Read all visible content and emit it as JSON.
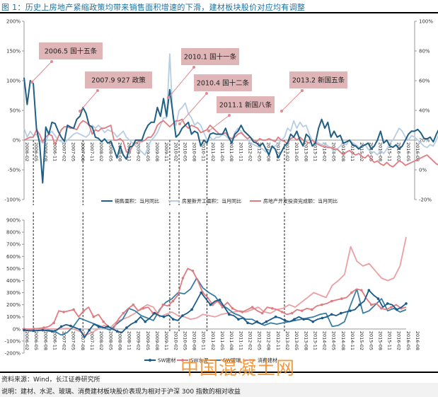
{
  "title": "图 1：历史上房地产紧缩政策均带来销售面积增速的下滑，建材板块股价对应均有调整",
  "source": "资料来源：Wind，长江证券研究所",
  "note": "说明：建材、水泥、玻璃、消费建材板块股价表现为相对于沪深 300 指数的相对收益",
  "watermark": "中国混凝土网",
  "colors": {
    "sales": "#1f5f86",
    "newstart": "#b7cde3",
    "invest": "#e07b80",
    "sw_building": "#1a5a8a",
    "sw_cement": "#e07b80",
    "sw_glass": "#3b7ea5",
    "consumer_building": "#eaa0a2",
    "annotation_bg": "#dfb5b7",
    "annotation_line": "#e08a90"
  },
  "chart_data": [
    {
      "type": "line",
      "title": "",
      "xlabel": "",
      "ylabel": "",
      "ylim": [
        -100,
        200
      ],
      "y2lim": [
        -20,
        100
      ],
      "yticks": [
        "200%",
        "150%",
        "100%",
        "50%",
        "0%",
        "-50%",
        "-100%"
      ],
      "y2ticks": [
        "100%",
        "80%",
        "60%",
        "40%",
        "20%",
        "0%",
        "-20%"
      ],
      "x_ticks": [
        "2006-02",
        "2006-05",
        "2006-08",
        "2006-11",
        "2007-02",
        "2007-05",
        "2007-08",
        "2007-11",
        "2008-02",
        "2008-05",
        "2008-08",
        "2008-11",
        "2009-02",
        "2009-05",
        "2009-08",
        "2009-11",
        "2010-02",
        "2010-05",
        "2010-08",
        "2010-11",
        "2011-02",
        "2011-05",
        "2011-08",
        "2011-11",
        "2012-02",
        "2012-05",
        "2012-08",
        "2012-11",
        "2013-02",
        "2013-05",
        "2013-08",
        "2013-11",
        "2014-02",
        "2014-05",
        "2014-08",
        "2014-11",
        "2015-02",
        "2015-05",
        "2015-08",
        "2015-11",
        "2016-02",
        "2016-05",
        "2016-08"
      ],
      "legend_position": "bottom",
      "series": [
        {
          "name": "销售面积：当月同比",
          "axis": "left",
          "color_key": "sales",
          "values": [
            105,
            60,
            100,
            95,
            20,
            -5,
            -72,
            22,
            10,
            30,
            28,
            15,
            5,
            -2,
            25,
            22,
            20,
            35,
            40,
            55,
            45,
            25,
            22,
            5,
            3,
            -3,
            2,
            -5,
            -2,
            -15,
            -30,
            -10,
            -25,
            -32,
            -12,
            -10,
            0,
            0,
            0,
            15,
            25,
            30,
            30,
            55,
            40,
            70,
            40,
            85,
            45,
            5,
            10,
            20,
            25,
            30,
            10,
            15,
            12,
            -10,
            0,
            -5,
            10,
            12,
            10,
            10,
            10,
            20,
            5,
            -5,
            10,
            15,
            25,
            15,
            10,
            5,
            -3,
            -5,
            -10,
            -5,
            -15,
            -25,
            -10,
            -15,
            -30,
            -20,
            -10,
            -5,
            10,
            5,
            15,
            0,
            -10,
            10,
            5,
            -10,
            -5,
            20,
            35,
            20,
            30,
            5,
            15,
            5,
            8,
            -5,
            -3,
            0,
            -8,
            -10,
            -15,
            -10,
            -8,
            -5,
            -15,
            -10,
            0,
            15,
            -5,
            0,
            -10,
            -12,
            -8,
            -15,
            -10,
            0,
            10,
            15,
            15,
            18,
            12,
            3,
            2,
            5,
            -3,
            10,
            20,
            30,
            10,
            15,
            15,
            20
          ]
        },
        {
          "name": "房屋新开工面积：当月同比",
          "axis": "right",
          "color_key": "newstart",
          "values": [
            28,
            22,
            26,
            23,
            24,
            20,
            18,
            19,
            24,
            26,
            23,
            20,
            19,
            18,
            20,
            22,
            24,
            25,
            24,
            23,
            22,
            24,
            30,
            28,
            30,
            28,
            25,
            27,
            26,
            25,
            22,
            24,
            26,
            22,
            20,
            18,
            16,
            14,
            12,
            10,
            15,
            20,
            22,
            25,
            30,
            35,
            35,
            78,
            35,
            30,
            40,
            42,
            45,
            38,
            35,
            30,
            32,
            30,
            25,
            20,
            22,
            20,
            22,
            22,
            24,
            23,
            21,
            20,
            25,
            28,
            26,
            23,
            21,
            18,
            17,
            16,
            15,
            14,
            12,
            13,
            15,
            16,
            18,
            20,
            22,
            28,
            26,
            33,
            28,
            32,
            29,
            30,
            24,
            20,
            20,
            18,
            17,
            18,
            16,
            15,
            12,
            14,
            16,
            18,
            17,
            20,
            18,
            17,
            15,
            16,
            17,
            14,
            12,
            12,
            10,
            13,
            11,
            14,
            18,
            20,
            24,
            28,
            26,
            22,
            20,
            23,
            22,
            20,
            18,
            16,
            15,
            17,
            16,
            20,
            25,
            28,
            26,
            24,
            23,
            22
          ]
        },
        {
          "name": "房地产开发投资完成额：当月同比",
          "axis": "right",
          "color_key": "invest",
          "values": [
            20,
            21,
            22,
            22,
            27,
            24,
            19,
            22,
            24,
            23,
            17,
            22,
            27,
            29,
            29,
            28,
            28,
            27,
            31,
            33,
            32,
            30,
            24,
            27,
            26,
            28,
            28,
            29,
            30,
            20,
            20,
            21,
            19,
            12,
            12,
            16,
            18,
            19,
            19,
            20,
            22,
            22,
            25,
            30,
            32,
            33,
            31,
            29,
            31,
            33,
            33,
            34,
            30,
            28,
            30,
            29,
            28,
            25,
            26,
            27,
            30,
            28,
            26,
            24,
            24,
            25,
            22,
            21,
            22,
            24,
            25,
            23,
            21,
            22,
            20,
            19,
            21,
            20,
            20,
            21,
            20,
            19,
            22,
            20,
            19,
            18,
            21,
            22,
            20,
            22,
            20,
            19,
            18,
            20,
            18,
            17,
            16,
            16,
            15,
            15,
            14,
            14,
            12,
            10,
            12,
            13,
            11,
            10,
            11,
            9,
            8,
            10,
            7,
            5,
            6,
            4,
            3,
            5,
            3,
            2,
            4,
            6,
            5,
            3,
            4,
            5,
            6,
            7,
            8,
            9,
            10,
            8,
            6,
            4,
            3,
            2,
            3,
            4,
            5,
            6
          ]
        }
      ],
      "annotations": [
        {
          "label": "2006.5 国十五条",
          "x": "2006-05"
        },
        {
          "label": "2007.9 927 政策",
          "x": "2007-09"
        },
        {
          "label": "2010.1 国十一条",
          "x": "2010-01"
        },
        {
          "label": "2010.4 国十二条",
          "x": "2010-04"
        },
        {
          "label": "2011.1 新国八条",
          "x": "2011-01"
        },
        {
          "label": "2013.2 新国五条",
          "x": "2013-02"
        }
      ]
    },
    {
      "type": "line",
      "title": "",
      "ylim": [
        -200,
        900
      ],
      "yticks": [
        "900%",
        "800%",
        "700%",
        "600%",
        "500%",
        "400%",
        "300%",
        "200%",
        "100%",
        "0%",
        "-100%",
        "-200%"
      ],
      "x_ticks": [
        "2006-02",
        "2006-05",
        "2006-08",
        "2006-11",
        "2007-02",
        "2007-05",
        "2007-08",
        "2007-11",
        "2008-02",
        "2008-05",
        "2008-08",
        "2008-11",
        "2009-02",
        "2009-05",
        "2009-08",
        "2009-11",
        "2010-02",
        "2010-05",
        "2010-08",
        "2010-11",
        "2011-02",
        "2011-05",
        "2011-08",
        "2011-11",
        "2012-02",
        "2012-05",
        "2012-08",
        "2012-11",
        "2013-02",
        "2013-05",
        "2013-08",
        "2013-11",
        "2014-02",
        "2014-05",
        "2014-08",
        "2014-11",
        "2015-02",
        "2015-05",
        "2015-08",
        "2015-11",
        "2016-02",
        "2016-05",
        "2016-08"
      ],
      "legend_position": "bottom",
      "series": [
        {
          "name": "SW建材",
          "color_key": "sw_building",
          "values": [
            -10,
            -15,
            -15,
            -12,
            -10,
            -15,
            -20,
            -10,
            20,
            35,
            25,
            10,
            -5,
            -70,
            -10,
            40,
            20,
            10,
            20,
            0,
            -20,
            -30,
            10,
            40,
            60,
            100,
            60,
            90,
            130,
            110,
            100,
            115,
            80,
            70,
            110,
            130,
            160,
            230,
            300,
            250,
            200,
            230,
            240,
            180,
            120,
            110,
            80,
            90,
            50,
            40,
            60,
            40,
            60,
            80,
            100,
            90,
            70,
            60,
            80,
            100,
            80,
            80,
            60,
            80,
            90,
            100,
            120,
            110,
            130,
            140,
            150,
            160,
            200,
            230,
            320,
            280,
            250,
            180,
            210,
            200,
            160,
            180,
            210
          ]
        },
        {
          "name": "SW水泥",
          "color_key": "sw_cement",
          "values": [
            0,
            -5,
            0,
            5,
            10,
            20,
            50,
            150,
            140,
            150,
            160,
            100,
            150,
            180,
            100,
            120,
            60,
            20,
            0,
            80,
            130,
            170,
            200,
            150,
            170,
            180,
            130,
            130,
            200,
            190,
            230,
            280,
            420,
            500,
            480,
            400,
            300,
            260,
            200,
            230,
            180,
            220,
            170,
            150,
            140,
            160,
            180,
            150,
            130,
            180,
            170,
            160,
            140,
            120,
            130,
            160,
            150,
            170,
            160,
            190,
            200,
            210,
            230,
            240,
            250,
            260,
            300,
            330,
            320,
            250,
            200,
            210,
            170,
            160,
            180,
            200,
            170,
            180
          ]
        },
        {
          "name": "SW玻璃",
          "color_key": "sw_glass",
          "values": [
            -10,
            -15,
            -15,
            -12,
            -10,
            -20,
            -50,
            -30,
            20,
            90,
            70,
            50,
            30,
            10,
            -10,
            40,
            80,
            170,
            150,
            110,
            90,
            70,
            160,
            220,
            250,
            300,
            290,
            330,
            420,
            340,
            300,
            270,
            200,
            170,
            130,
            110,
            80,
            80,
            50,
            30,
            50,
            40,
            50,
            60,
            70,
            80,
            90,
            100,
            120,
            130,
            20,
            30,
            60,
            200,
            330,
            130,
            150,
            200,
            250,
            150,
            170,
            140,
            160
          ]
        },
        {
          "name": "消费建材",
          "color_key": "consumer_building",
          "values": [
            0,
            0,
            0,
            0,
            0,
            0,
            0,
            5,
            0,
            -20,
            -50,
            -30,
            0,
            30,
            10,
            60,
            80,
            100,
            130,
            170,
            200,
            180,
            100,
            120,
            140,
            110,
            100,
            80,
            90,
            120,
            110,
            100,
            120,
            130,
            140,
            150,
            140,
            160,
            180,
            140,
            130,
            160,
            170,
            200,
            180,
            220,
            260,
            300,
            280,
            260,
            360,
            400,
            450,
            680,
            560,
            520,
            540,
            480,
            420,
            400,
            420,
            520,
            760
          ]
        }
      ]
    }
  ]
}
